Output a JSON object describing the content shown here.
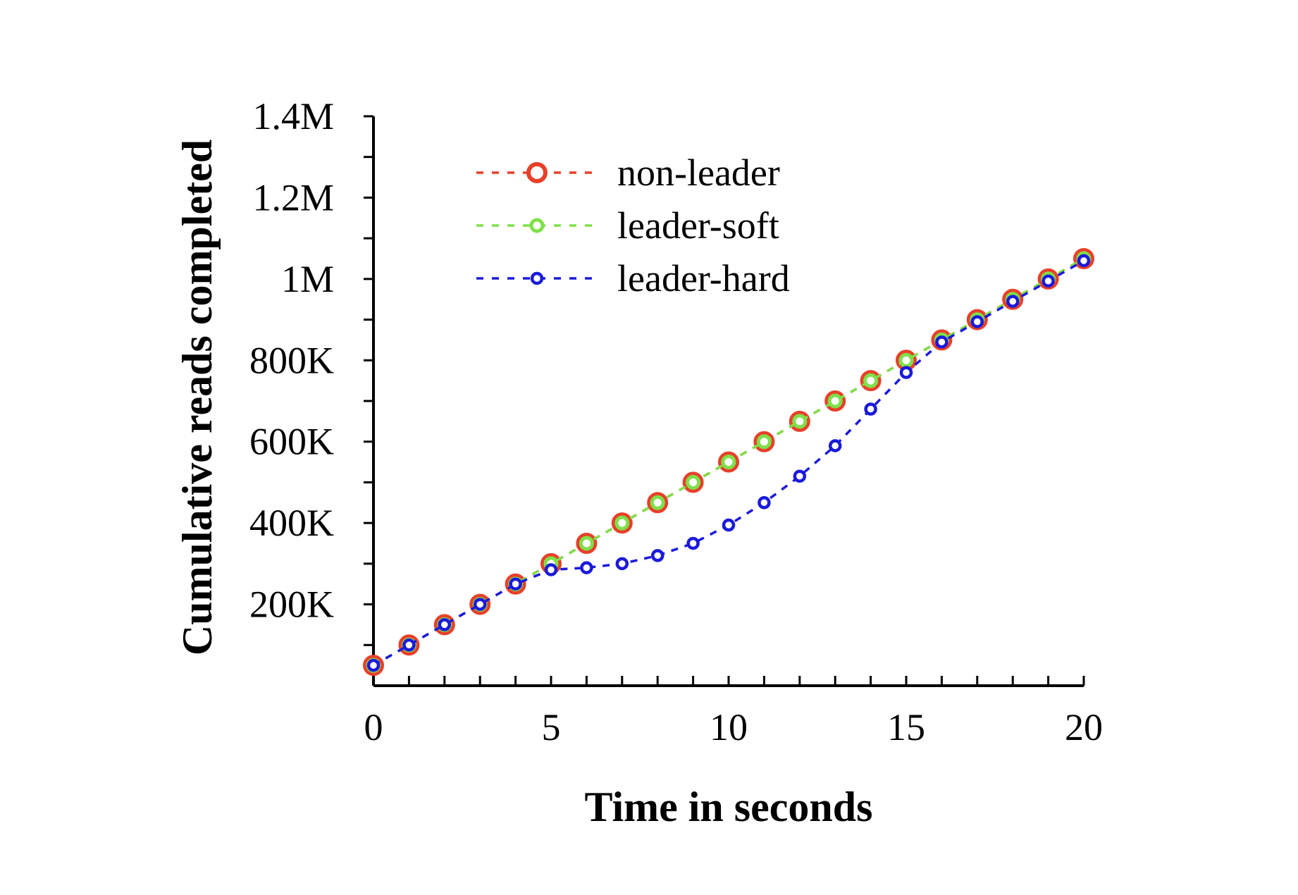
{
  "chart_data": {
    "type": "line",
    "title": "",
    "xlabel": "Time in seconds",
    "ylabel": "Cumulative reads completed",
    "xlim": [
      0,
      20
    ],
    "ylim": [
      0,
      1400000
    ],
    "xticks": [
      {
        "value": 0,
        "label": "0"
      },
      {
        "value": 5,
        "label": "5"
      },
      {
        "value": 10,
        "label": "10"
      },
      {
        "value": 15,
        "label": "15"
      },
      {
        "value": 20,
        "label": "20"
      }
    ],
    "yticks": [
      {
        "value": 200000,
        "label": "200K"
      },
      {
        "value": 400000,
        "label": "400K"
      },
      {
        "value": 600000,
        "label": "600K"
      },
      {
        "value": 800000,
        "label": "800K"
      },
      {
        "value": 1000000,
        "label": "1M"
      },
      {
        "value": 1200000,
        "label": "1.2M"
      },
      {
        "value": 1400000,
        "label": "1.4M"
      }
    ],
    "legend_position": "top-left",
    "x": [
      0,
      1,
      2,
      3,
      4,
      5,
      6,
      7,
      8,
      9,
      10,
      11,
      12,
      13,
      14,
      15,
      16,
      17,
      18,
      19,
      20
    ],
    "series": [
      {
        "name": "non-leader",
        "color": "#e8402a",
        "marker": "large-circle",
        "values": [
          50000,
          100000,
          150000,
          200000,
          250000,
          300000,
          350000,
          400000,
          450000,
          500000,
          550000,
          600000,
          650000,
          700000,
          750000,
          800000,
          850000,
          900000,
          950000,
          1000000,
          1050000
        ]
      },
      {
        "name": "leader-soft",
        "color": "#7fe04a",
        "marker": "medium-circle",
        "values": [
          50000,
          100000,
          150000,
          200000,
          250000,
          300000,
          350000,
          400000,
          450000,
          500000,
          550000,
          600000,
          650000,
          700000,
          750000,
          800000,
          850000,
          900000,
          950000,
          1000000,
          1050000
        ]
      },
      {
        "name": "leader-hard",
        "color": "#1a1adb",
        "marker": "small-circle",
        "values": [
          50000,
          100000,
          150000,
          200000,
          250000,
          285000,
          290000,
          300000,
          320000,
          350000,
          395000,
          450000,
          515000,
          590000,
          680000,
          770000,
          845000,
          895000,
          945000,
          995000,
          1045000
        ]
      }
    ]
  }
}
